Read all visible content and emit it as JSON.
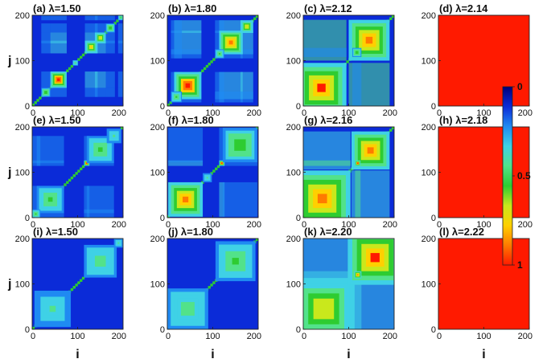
{
  "chart_data": {
    "type": "heatmap",
    "grid": {
      "rows": 3,
      "cols": 4
    },
    "x_range": [
      0,
      200
    ],
    "y_range": [
      0,
      200
    ],
    "x_ticks": [
      "0",
      "100",
      "200"
    ],
    "y_ticks": [
      "0",
      "100",
      "200"
    ],
    "xlabel": "i",
    "ylabel": "j",
    "colorbar": {
      "range": [
        0,
        1
      ],
      "ticks": [
        "0",
        "0.5",
        "1"
      ],
      "colors": [
        "#00007a",
        "#0b2bd8",
        "#1f8af2",
        "#3fd1e6",
        "#52e28a",
        "#2ecc31",
        "#c9e81c",
        "#ffd000",
        "#ff7a00",
        "#ff1a00"
      ]
    },
    "panels": [
      {
        "label": "(a)",
        "lambda": "λ=1.50",
        "row": 0,
        "col": 0,
        "uniform": 0,
        "blocks": [
          [
            58,
            18,
            1.0
          ],
          [
            130,
            14,
            0.75
          ],
          [
            150,
            12,
            0.7
          ],
          [
            172,
            10,
            0.6
          ],
          [
            30,
            10,
            0.6
          ],
          [
            95,
            6,
            0.45
          ],
          [
            195,
            6,
            0.5
          ]
        ]
      },
      {
        "label": "(b)",
        "lambda": "λ=1.80",
        "row": 0,
        "col": 1,
        "uniform": 0,
        "blocks": [
          [
            45,
            30,
            1.0
          ],
          [
            140,
            26,
            0.85
          ],
          [
            175,
            14,
            0.7
          ],
          [
            115,
            10,
            0.55
          ],
          [
            20,
            12,
            0.5
          ]
        ]
      },
      {
        "label": "(c)",
        "lambda": "λ=2.12",
        "row": 0,
        "col": 2,
        "uniform": 0,
        "blocks": [
          [
            40,
            55,
            0.95
          ],
          [
            145,
            45,
            0.9
          ],
          [
            118,
            10,
            0.6
          ]
        ]
      },
      {
        "label": "(d)",
        "lambda": "λ=2.14",
        "row": 0,
        "col": 3,
        "uniform": 1,
        "blocks": []
      },
      {
        "label": "(e)",
        "lambda": "λ=1.50",
        "row": 1,
        "col": 0,
        "uniform": 0,
        "blocks": [
          [
            40,
            30,
            0.5
          ],
          [
            120,
            6,
            1.0
          ],
          [
            150,
            30,
            0.5
          ],
          [
            180,
            16,
            0.4
          ],
          [
            8,
            10,
            0.5
          ]
        ]
      },
      {
        "label": "(f)",
        "lambda": "λ=1.80",
        "row": 1,
        "col": 1,
        "uniform": 0,
        "blocks": [
          [
            40,
            38,
            0.85
          ],
          [
            120,
            6,
            1.0
          ],
          [
            160,
            38,
            0.6
          ],
          [
            88,
            10,
            0.4
          ]
        ]
      },
      {
        "label": "(g)",
        "lambda": "λ=2.16",
        "row": 1,
        "col": 2,
        "uniform": 0,
        "blocks": [
          [
            42,
            62,
            0.88
          ],
          [
            148,
            42,
            0.85
          ],
          [
            120,
            6,
            1.0
          ]
        ]
      },
      {
        "label": "(h)",
        "lambda": "λ=2.18",
        "row": 1,
        "col": 3,
        "uniform": 1,
        "blocks": []
      },
      {
        "label": "(i)",
        "lambda": "λ=1.50",
        "row": 2,
        "col": 0,
        "uniform": 0,
        "blocks": [
          [
            45,
            40,
            0.4
          ],
          [
            120,
            6,
            1.0
          ],
          [
            150,
            36,
            0.45
          ],
          [
            190,
            10,
            0.4
          ]
        ]
      },
      {
        "label": "(j)",
        "lambda": "λ=1.80",
        "row": 2,
        "col": 1,
        "uniform": 0,
        "blocks": [
          [
            45,
            45,
            0.45
          ],
          [
            120,
            6,
            1.0
          ],
          [
            150,
            44,
            0.5
          ]
        ]
      },
      {
        "label": "(k)",
        "lambda": "λ=2.20",
        "row": 2,
        "col": 2,
        "uniform": 0,
        "blocks": [
          [
            45,
            68,
            0.72
          ],
          [
            158,
            60,
            0.95
          ],
          [
            120,
            8,
            0.9
          ]
        ]
      },
      {
        "label": "(l)",
        "lambda": "λ=2.22",
        "row": 2,
        "col": 3,
        "uniform": 1,
        "blocks": []
      }
    ]
  }
}
